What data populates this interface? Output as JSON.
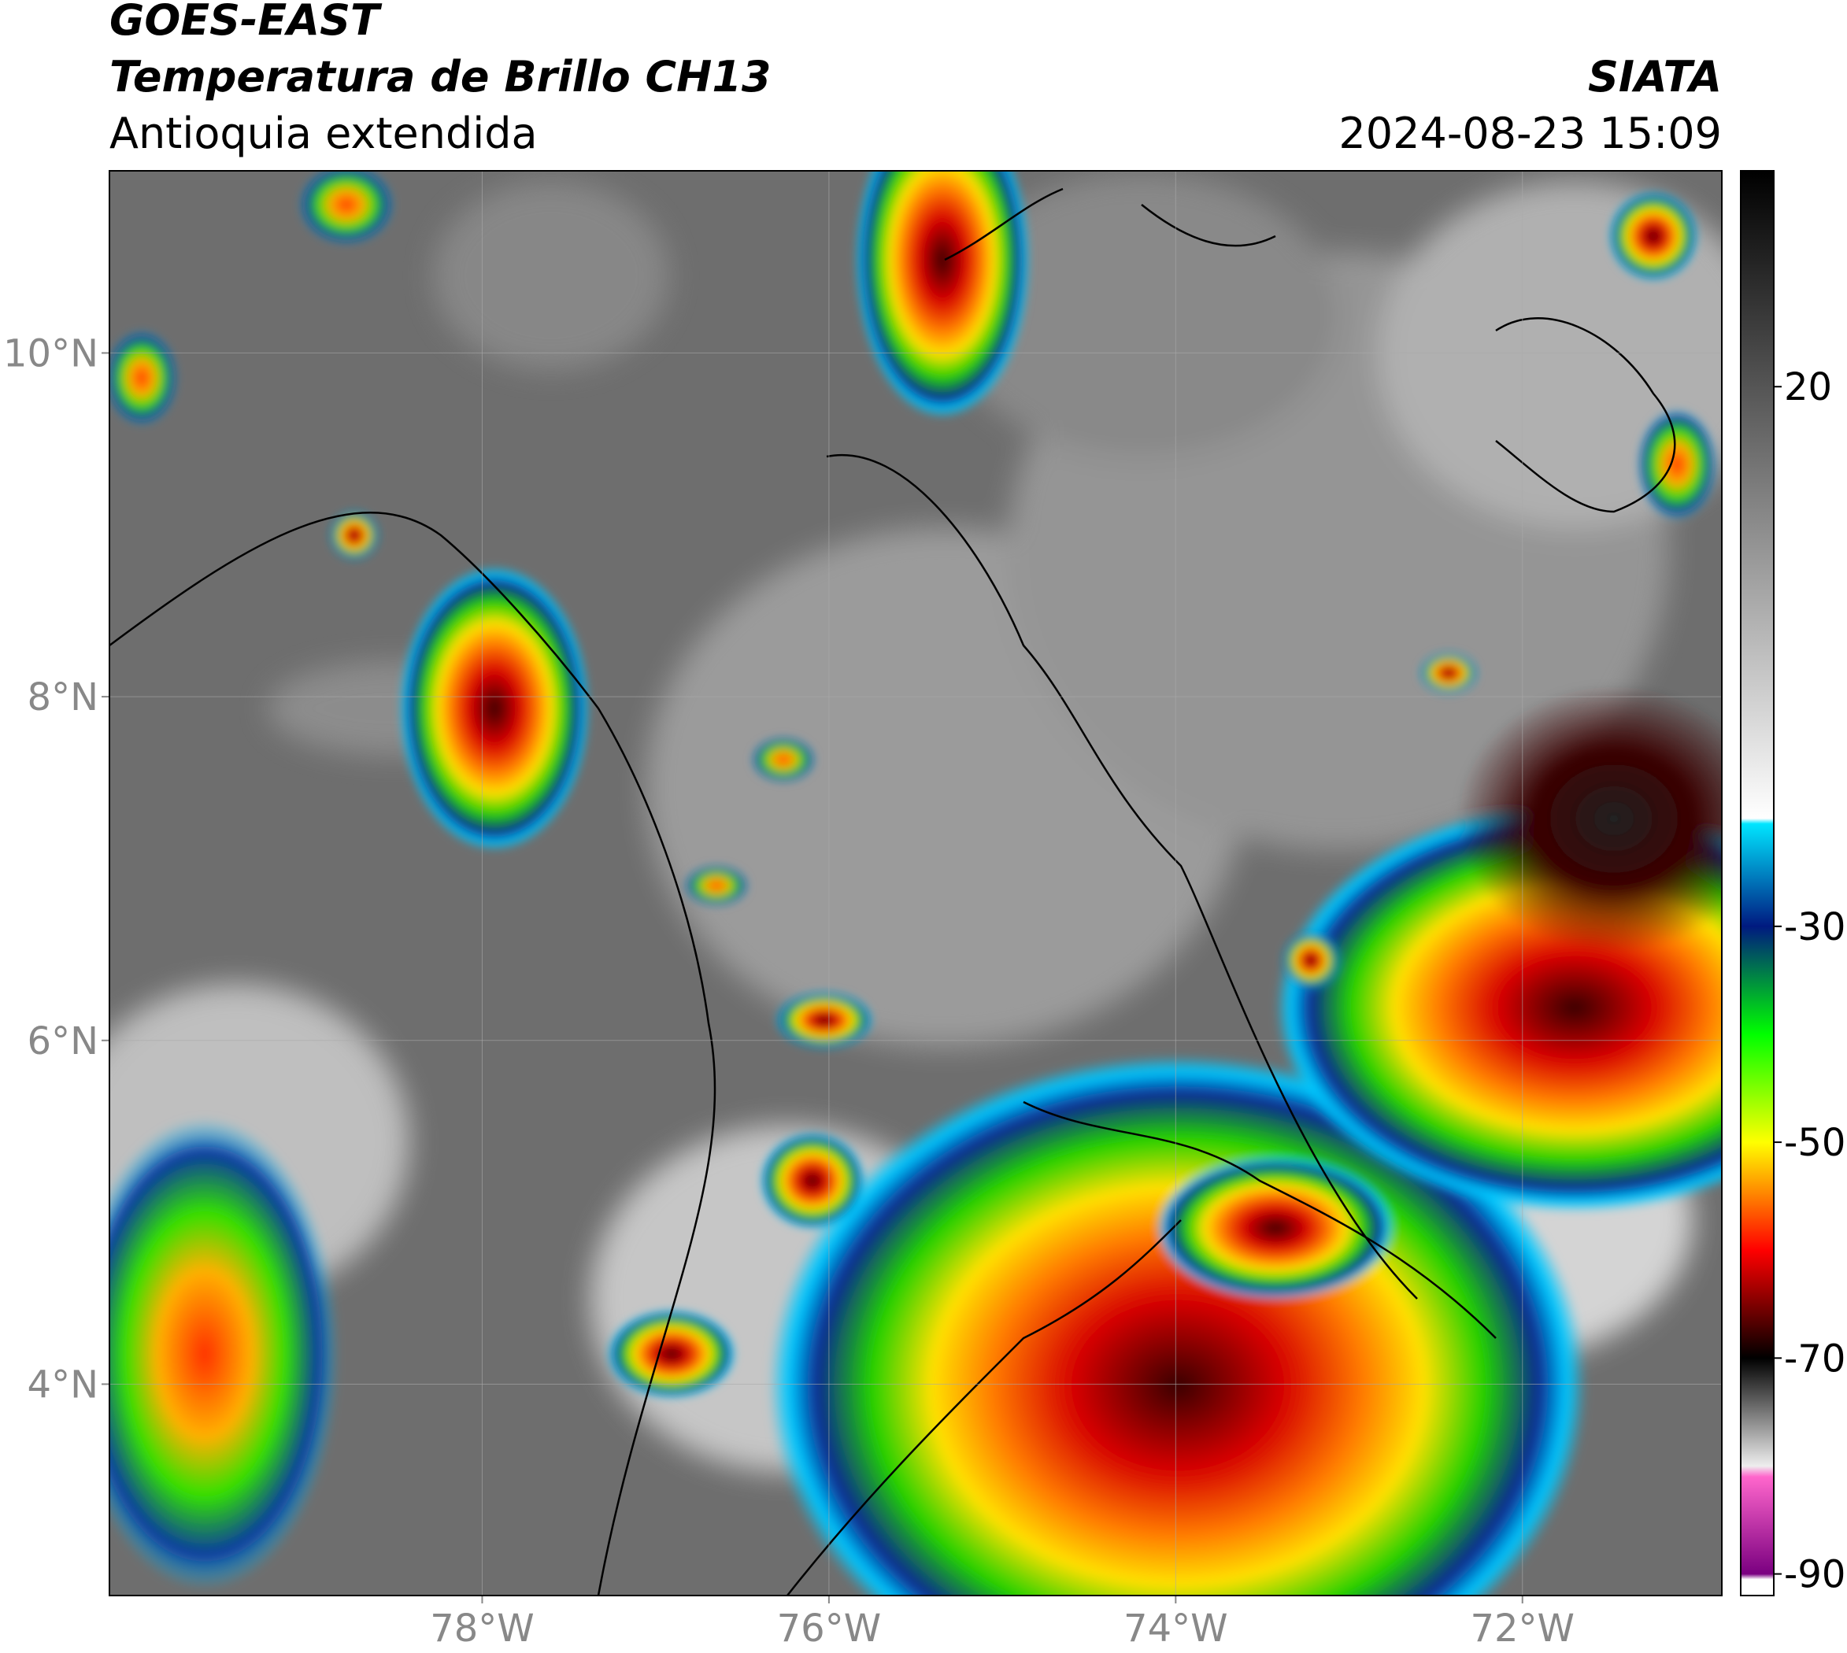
{
  "header": {
    "title": "GOES-EAST",
    "subtitle": "Temperatura de Brillo CH13",
    "region": "Antioquia extendida",
    "source": "SIATA",
    "datetime": "2024-08-23 15:09"
  },
  "map": {
    "xlim": [
      -80.15,
      -70.85
    ],
    "ylim": [
      2.77,
      11.06
    ],
    "xticks": [
      {
        "value": -78,
        "label": "78°W"
      },
      {
        "value": -76,
        "label": "76°W"
      },
      {
        "value": -74,
        "label": "74°W"
      },
      {
        "value": -72,
        "label": "72°W"
      }
    ],
    "yticks": [
      {
        "value": 10,
        "label": "10°N"
      },
      {
        "value": 8,
        "label": "8°N"
      },
      {
        "value": 6,
        "label": "6°N"
      },
      {
        "value": 4,
        "label": "4°N"
      }
    ],
    "grid": true
  },
  "colorbar": {
    "lim": [
      -92,
      40
    ],
    "ticks": [
      20,
      -30,
      -50,
      -70,
      -90
    ],
    "stops": [
      {
        "value": 40,
        "color": "#000000"
      },
      {
        "value": 20,
        "color": "#555555"
      },
      {
        "value": -20,
        "color": "#ffffff"
      },
      {
        "value": -20.5,
        "color": "#00e5ff"
      },
      {
        "value": -30,
        "color": "#001a80"
      },
      {
        "value": -40,
        "color": "#00ff00"
      },
      {
        "value": -50,
        "color": "#ffff00"
      },
      {
        "value": -55,
        "color": "#ff8000"
      },
      {
        "value": -60,
        "color": "#ff0000"
      },
      {
        "value": -70,
        "color": "#000000"
      },
      {
        "value": -80,
        "color": "#eeeeee"
      },
      {
        "value": -81,
        "color": "#ff66cc"
      },
      {
        "value": -90,
        "color": "#7a0080"
      },
      {
        "value": -90.5,
        "color": "#ffffff"
      }
    ]
  }
}
